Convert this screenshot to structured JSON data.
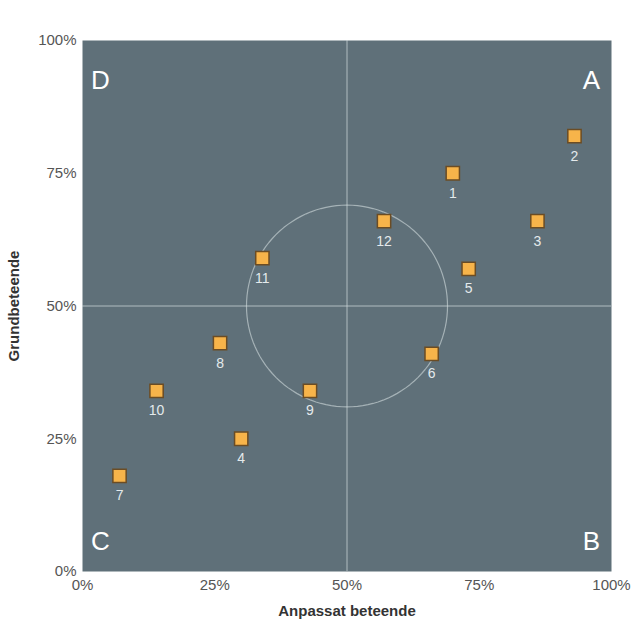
{
  "chart_data": {
    "type": "scatter",
    "x_label": "Anpassat beteende",
    "y_label": "Grundbeteende",
    "labels": [
      "1",
      "2",
      "3",
      "4",
      "5",
      "6",
      "7",
      "8",
      "9",
      "10",
      "11",
      "12"
    ],
    "x": [
      70,
      93,
      86,
      30,
      73,
      66,
      7,
      26,
      43,
      14,
      34,
      57
    ],
    "values": [
      75,
      82,
      66,
      25,
      57,
      41,
      18,
      43,
      34,
      34,
      59,
      66
    ],
    "color": "#f7b44a",
    "marker": "square",
    "xlim": [
      0,
      100
    ],
    "ylim": [
      0,
      100
    ],
    "xticks": [
      {
        "value": 0,
        "label": "0%"
      },
      {
        "value": 25,
        "label": "25%"
      },
      {
        "value": 50,
        "label": "50%"
      },
      {
        "value": 75,
        "label": "75%"
      },
      {
        "value": 100,
        "label": "100%"
      }
    ],
    "yticks": [
      {
        "value": 0,
        "label": "0%"
      },
      {
        "value": 25,
        "label": "25%"
      },
      {
        "value": 50,
        "label": "50%"
      },
      {
        "value": 75,
        "label": "75%"
      },
      {
        "value": 100,
        "label": "100%"
      }
    ],
    "grid": false,
    "reference_lines": {
      "x": 50,
      "y": 50
    },
    "circle": {
      "center": [
        50,
        50
      ],
      "radius": 19
    },
    "quadrant_labels": {
      "top-right": "A",
      "bottom-right": "B",
      "bottom-left": "C",
      "top-left": "D"
    }
  }
}
